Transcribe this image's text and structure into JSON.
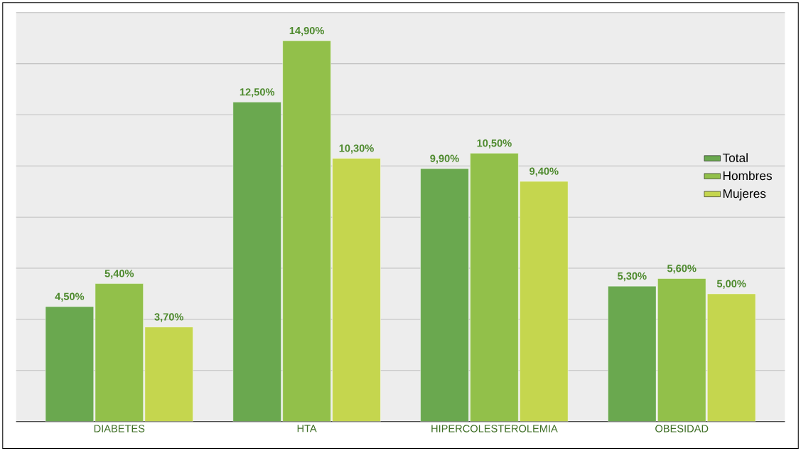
{
  "chart_data": {
    "type": "bar",
    "categories": [
      "DIABETES",
      "HTA",
      "HIPERCOLESTEROLEMIA",
      "OBESIDAD"
    ],
    "series": [
      {
        "name": "Total",
        "color": "#6aa84f",
        "values": [
          4.5,
          12.5,
          9.9,
          5.3
        ],
        "value_labels": [
          "4,50%",
          "12,50%",
          "9,90%",
          "5,30%"
        ]
      },
      {
        "name": "Hombres",
        "color": "#92c04a",
        "values": [
          5.4,
          14.9,
          10.5,
          5.6
        ],
        "value_labels": [
          "5,40%",
          "14,90%",
          "10,50%",
          "5,60%"
        ]
      },
      {
        "name": "Mujeres",
        "color": "#c5d64e",
        "values": [
          3.7,
          10.3,
          9.4,
          5.0
        ],
        "value_labels": [
          "3,70%",
          "10,30%",
          "9,40%",
          "5,00%"
        ]
      }
    ],
    "ylim": [
      0,
      16
    ],
    "yticks": [
      {
        "value": 0,
        "label": null
      },
      {
        "value": 2,
        "label": null
      },
      {
        "value": 4,
        "label": null
      },
      {
        "value": 6,
        "label": null
      },
      {
        "value": 8,
        "label": null
      },
      {
        "value": 10,
        "label": null
      },
      {
        "value": 12,
        "label": null
      },
      {
        "value": 14,
        "label": null
      },
      {
        "value": 16,
        "label": null
      }
    ],
    "tick_labels": "x",
    "grid": "y",
    "legend": "right"
  }
}
